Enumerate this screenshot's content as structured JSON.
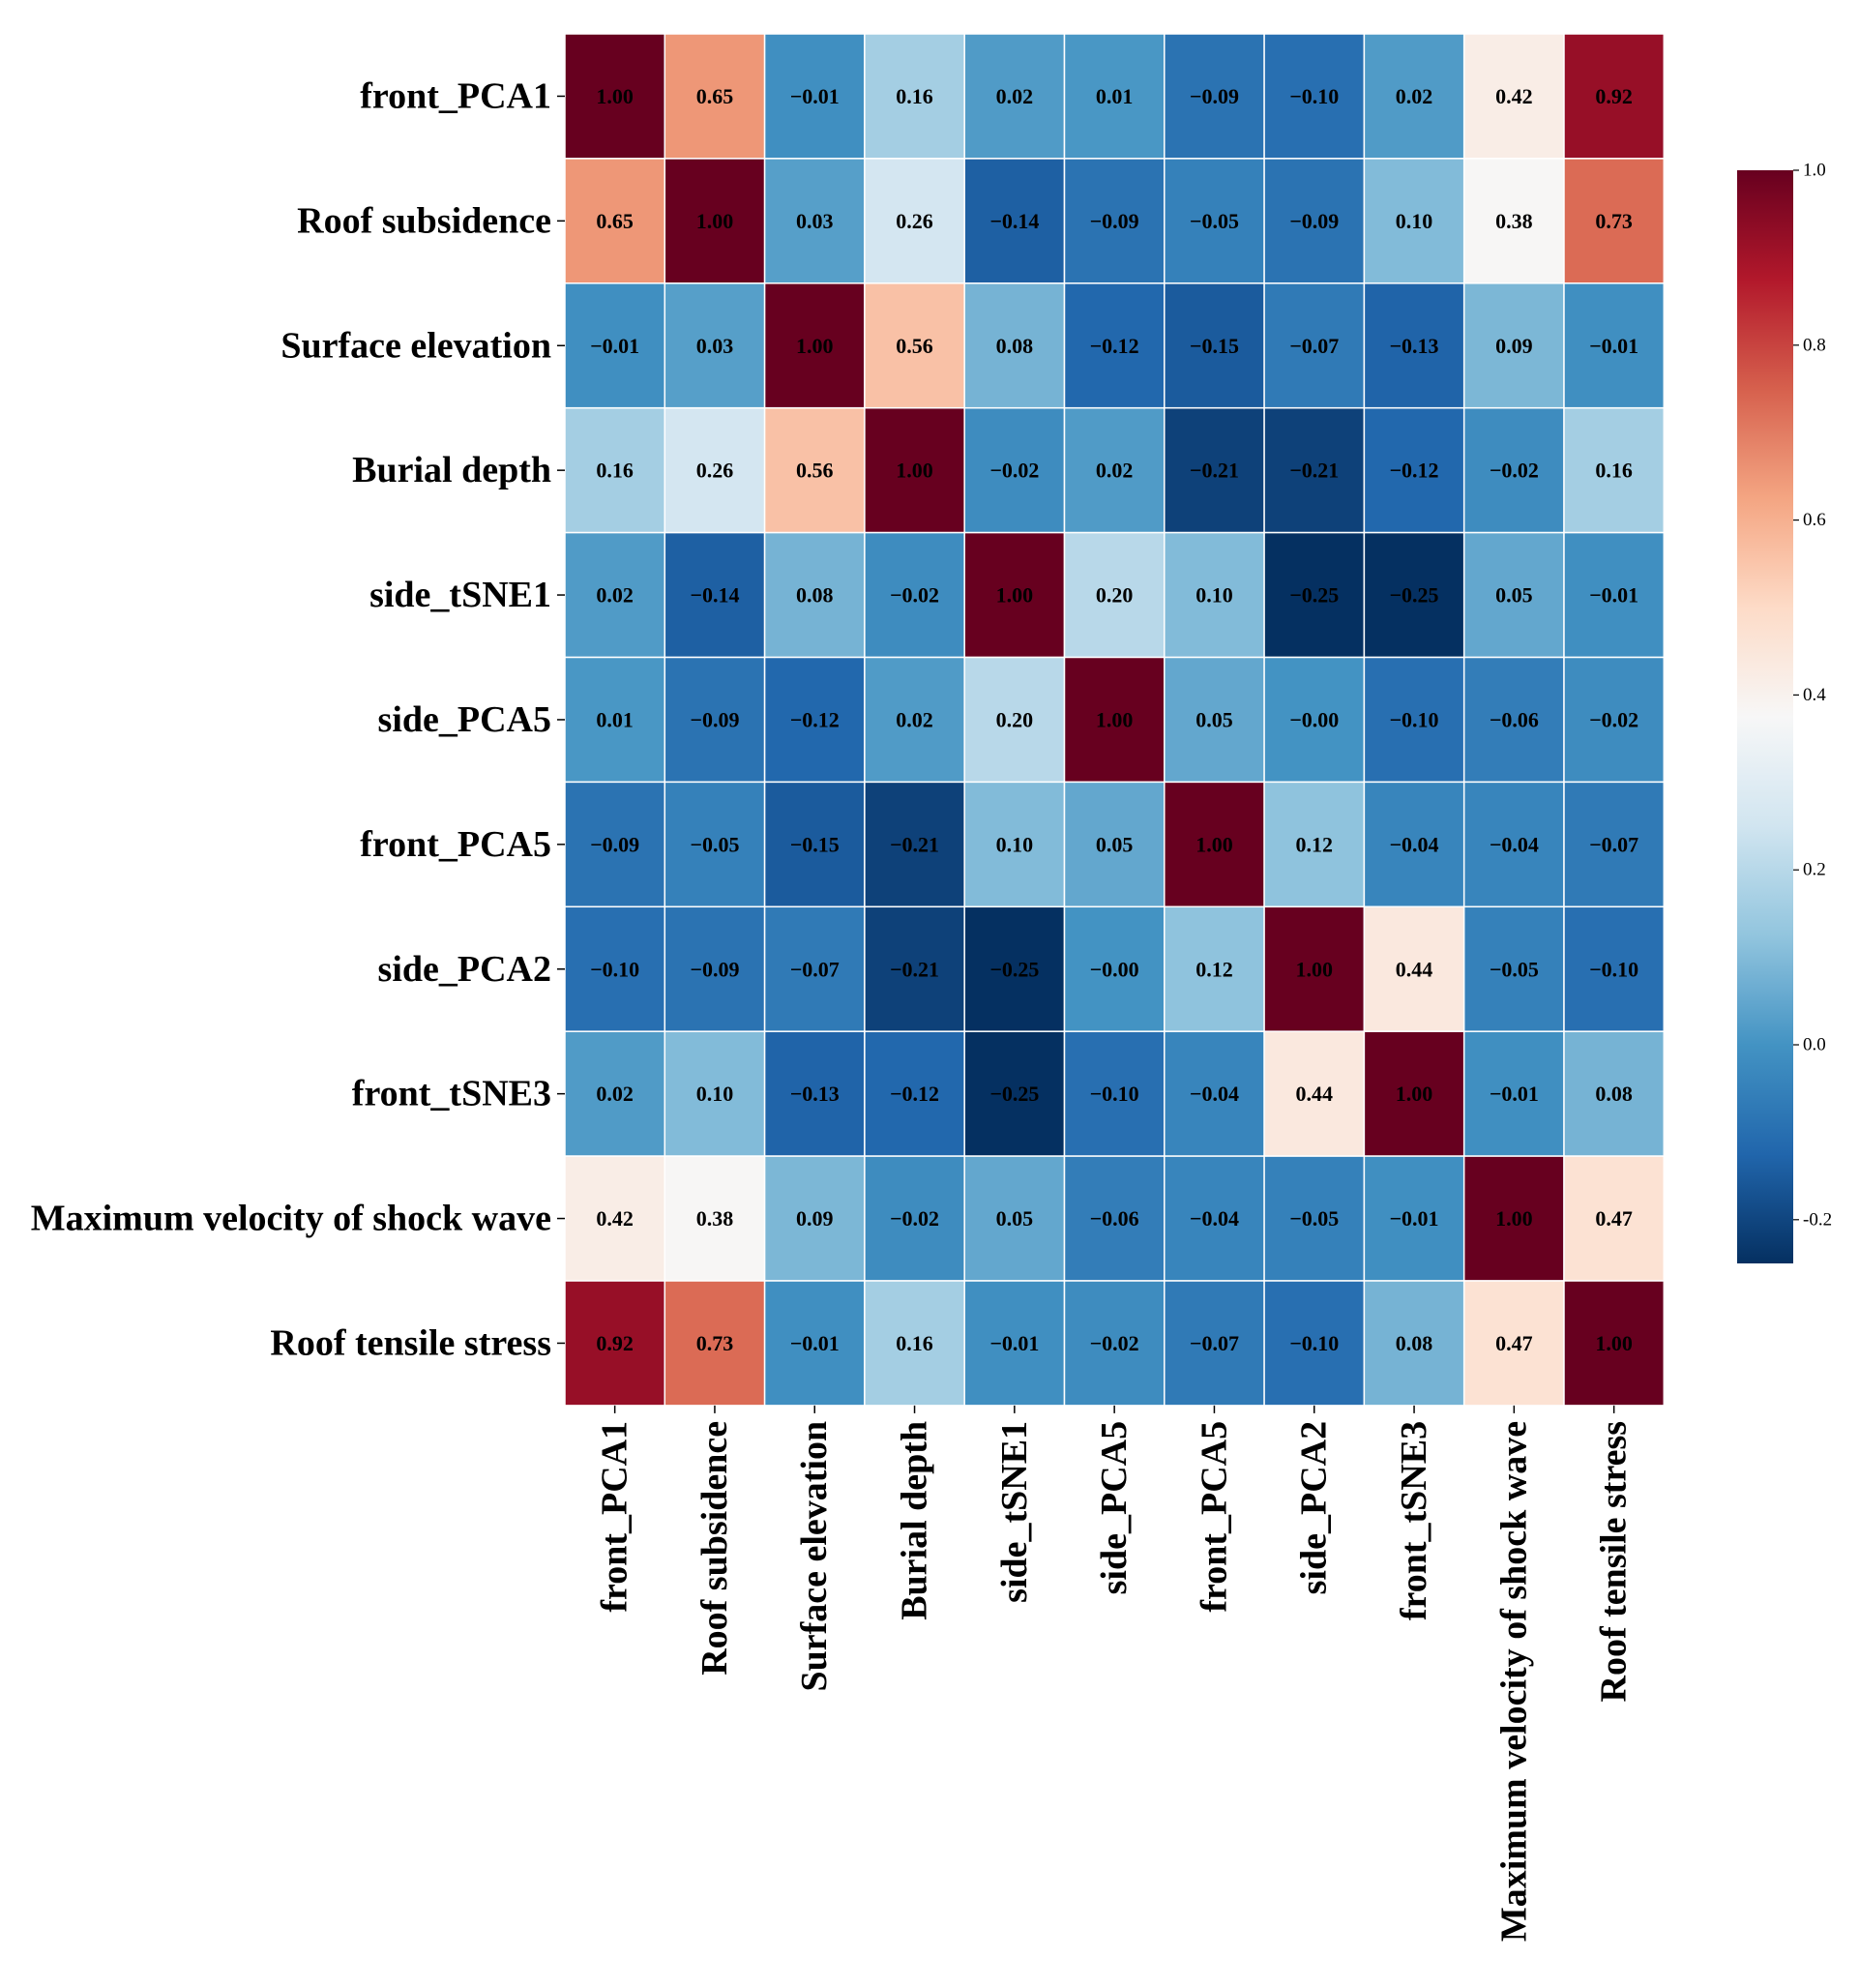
{
  "chart_data": {
    "type": "heatmap",
    "title": "",
    "labels": [
      "front_PCA1",
      "Roof subsidence",
      "Surface elevation",
      "Burial depth",
      "side_tSNE1",
      "side_PCA5",
      "front_PCA5",
      "side_PCA2",
      "front_tSNE3",
      "Maximum velocity of shock wave",
      "Roof tensile stress"
    ],
    "matrix": [
      [
        1.0,
        0.65,
        -0.01,
        0.16,
        0.02,
        0.01,
        -0.09,
        -0.1,
        0.02,
        0.42,
        0.92
      ],
      [
        0.65,
        1.0,
        0.03,
        0.26,
        -0.14,
        -0.09,
        -0.05,
        -0.09,
        0.1,
        0.38,
        0.73
      ],
      [
        -0.01,
        0.03,
        1.0,
        0.56,
        0.08,
        -0.12,
        -0.15,
        -0.07,
        -0.13,
        0.09,
        -0.01
      ],
      [
        0.16,
        0.26,
        0.56,
        1.0,
        -0.02,
        0.02,
        -0.21,
        -0.21,
        -0.12,
        -0.02,
        0.16
      ],
      [
        0.02,
        -0.14,
        0.08,
        -0.02,
        1.0,
        0.2,
        0.1,
        -0.25,
        -0.25,
        0.05,
        -0.01
      ],
      [
        0.01,
        -0.09,
        -0.12,
        0.02,
        0.2,
        1.0,
        0.05,
        -0.0,
        -0.1,
        -0.06,
        -0.02
      ],
      [
        -0.09,
        -0.05,
        -0.15,
        -0.21,
        0.1,
        0.05,
        1.0,
        0.12,
        -0.04,
        -0.04,
        -0.07
      ],
      [
        -0.1,
        -0.09,
        -0.07,
        -0.21,
        -0.25,
        -0.0,
        0.12,
        1.0,
        0.44,
        -0.05,
        -0.1
      ],
      [
        0.02,
        0.1,
        -0.13,
        -0.12,
        -0.25,
        -0.1,
        -0.04,
        0.44,
        1.0,
        -0.01,
        0.08
      ],
      [
        0.42,
        0.38,
        0.09,
        -0.02,
        0.05,
        -0.06,
        -0.04,
        -0.05,
        -0.01,
        1.0,
        0.47
      ],
      [
        0.92,
        0.73,
        -0.01,
        0.16,
        -0.01,
        -0.02,
        -0.07,
        -0.1,
        0.08,
        0.47,
        1.0
      ]
    ],
    "colormap": "RdBu_r",
    "vmin": -0.25,
    "vmax": 1.0,
    "colorbar": {
      "ticks": [
        -0.2,
        0.0,
        0.2,
        0.4,
        0.6,
        0.8,
        1.0
      ],
      "tick_labels": [
        "-0.2",
        "0.0",
        "0.2",
        "0.4",
        "0.6",
        "0.8",
        "1.0"
      ]
    }
  }
}
